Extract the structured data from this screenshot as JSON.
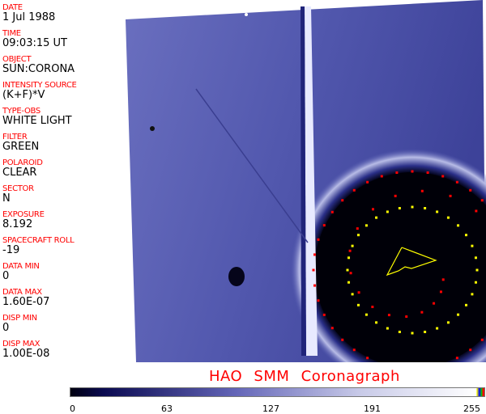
{
  "fields": [
    {
      "label": "DATE",
      "value": "1 Jul 1988"
    },
    {
      "label": "TIME",
      "value": "09:03:15 UT"
    },
    {
      "label": "OBJECT",
      "value": "SUN:CORONA"
    },
    {
      "label": "INTENSITY SOURCE",
      "value": "(K+F)*V"
    },
    {
      "label": "TYPE-OBS",
      "value": "WHITE LIGHT"
    },
    {
      "label": "FILTER",
      "value": "GREEN"
    },
    {
      "label": "POLAROID",
      "value": "CLEAR"
    },
    {
      "label": "SECTOR",
      "value": "N"
    },
    {
      "label": "EXPOSURE",
      "value": "8.192"
    },
    {
      "label": "SPACECRAFT ROLL",
      "value": "-19"
    },
    {
      "label": "DATA MIN",
      "value": "0"
    },
    {
      "label": "DATA MAX",
      "value": "1.60E-07"
    },
    {
      "label": "DISP MIN",
      "value": "0"
    },
    {
      "label": "DISP MAX",
      "value": "1.00E-08"
    }
  ],
  "title": "HAO  SMM Coronagraph",
  "colorbar": {
    "ticks": [
      "0",
      "63",
      "127",
      "191",
      "255"
    ],
    "colors": {
      "low": "#000010",
      "mid": "#6466b8",
      "high": "#ffffff"
    }
  },
  "colors": {
    "label": "#ff0000",
    "marker_red": "#ff0000",
    "marker_yellow": "#ffff00"
  }
}
